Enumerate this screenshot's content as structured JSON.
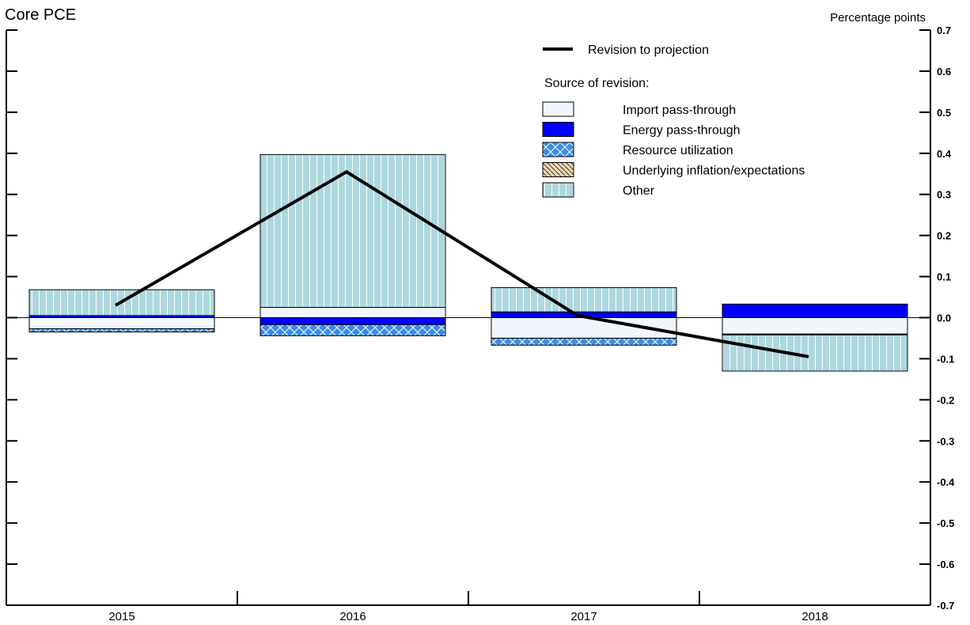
{
  "chart_data": {
    "type": "bar",
    "title": "Core PCE",
    "ylabel": "Percentage points",
    "ylim": [
      -0.7,
      0.7
    ],
    "yticks": [
      "0.7",
      "0.6",
      "0.5",
      "0.4",
      "0.3",
      "0.2",
      "0.1",
      "0.0",
      "-0.1",
      "-0.2",
      "-0.3",
      "-0.4",
      "-0.5",
      "-0.6",
      "-0.7"
    ],
    "ytick_values": [
      0.7,
      0.6,
      0.5,
      0.4,
      0.3,
      0.2,
      0.1,
      0.0,
      -0.1,
      -0.2,
      -0.3,
      -0.4,
      -0.5,
      -0.6,
      -0.7
    ],
    "categories": [
      "2015",
      "2016",
      "2017",
      "2018"
    ],
    "stacked": true,
    "legend_position": "top-right",
    "legend_subtitle": "Source of revision:",
    "line": {
      "name": "Revision to projection",
      "values": [
        0.03,
        0.355,
        0.005,
        -0.095
      ],
      "color": "#000000"
    },
    "series": [
      {
        "name": "Import pass-through",
        "values": [
          -0.027,
          0.025,
          -0.05,
          -0.04
        ],
        "color": "#f0f6fb",
        "pattern": "none"
      },
      {
        "name": "Energy pass-through",
        "values": [
          0.005,
          -0.017,
          0.014,
          0.033
        ],
        "color": "#0000ff",
        "pattern": "none"
      },
      {
        "name": "Resource utilization",
        "values": [
          -0.008,
          -0.027,
          -0.017,
          -0.002
        ],
        "color": "#3a8ee8",
        "pattern": "crosshatch"
      },
      {
        "name": "Underlying inflation/expectations",
        "values": [
          0.0,
          0.0,
          0.0,
          0.0
        ],
        "color": "#f3d9b2",
        "pattern": "diagonal"
      },
      {
        "name": "Other",
        "values": [
          0.063,
          0.372,
          0.059,
          -0.088
        ],
        "color": "#add8de",
        "pattern": "vertical"
      }
    ]
  }
}
